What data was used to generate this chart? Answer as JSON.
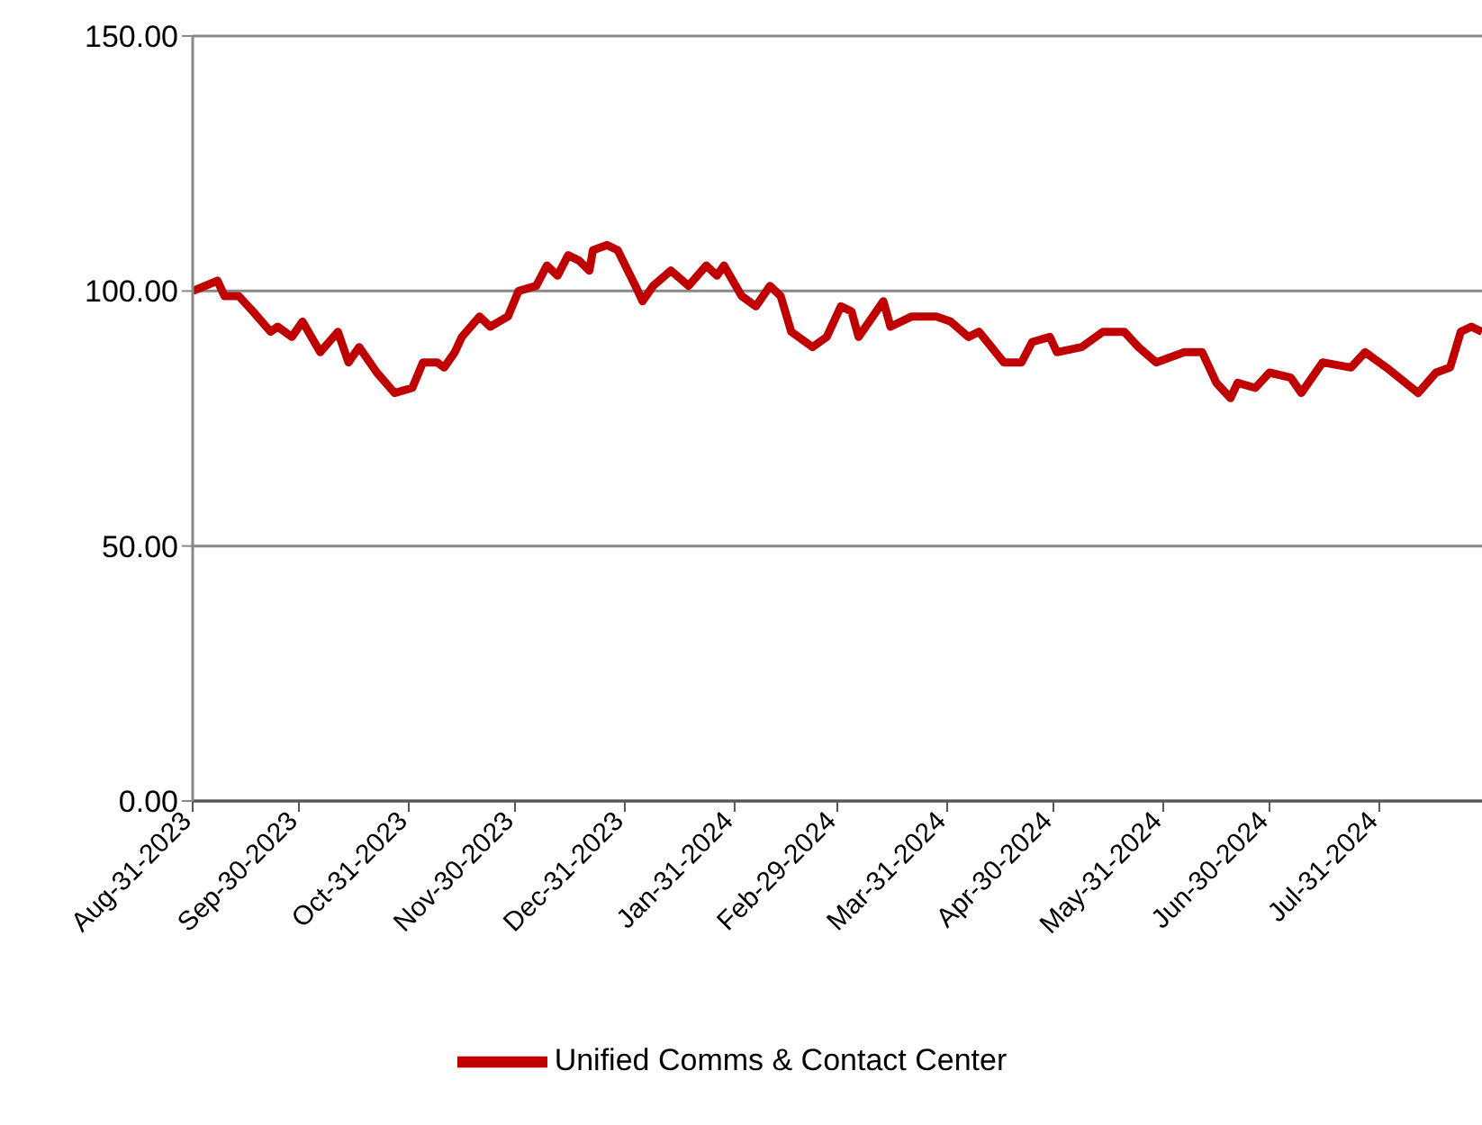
{
  "chart_data": {
    "type": "line",
    "xlim": [
      "2023-08-31",
      "2024-08-29"
    ],
    "xticks": [
      {
        "value": "2023-08-31",
        "label": "Aug-31-2023"
      },
      {
        "value": "2023-09-30",
        "label": "Sep-30-2023"
      },
      {
        "value": "2023-10-31",
        "label": "Oct-31-2023"
      },
      {
        "value": "2023-11-30",
        "label": "Nov-30-2023"
      },
      {
        "value": "2023-12-31",
        "label": "Dec-31-2023"
      },
      {
        "value": "2024-01-31",
        "label": "Jan-31-2024"
      },
      {
        "value": "2024-02-29",
        "label": "Feb-29-2024"
      },
      {
        "value": "2024-03-31",
        "label": "Mar-31-2024"
      },
      {
        "value": "2024-04-30",
        "label": "Apr-30-2024"
      },
      {
        "value": "2024-05-31",
        "label": "May-31-2024"
      },
      {
        "value": "2024-06-30",
        "label": "Jun-30-2024"
      },
      {
        "value": "2024-07-31",
        "label": "Jul-31-2024"
      }
    ],
    "ylim": [
      0,
      150
    ],
    "yticks": [
      {
        "value": 0,
        "label": "0.00"
      },
      {
        "value": 50,
        "label": "50.00"
      },
      {
        "value": 100,
        "label": "100.00"
      },
      {
        "value": 150,
        "label": "150.00"
      }
    ],
    "grid": "y",
    "legend": "bottom",
    "marker": "none",
    "line_style": "solid",
    "x": [
      "2023-08-31",
      "2023-09-07",
      "2023-09-09",
      "2023-09-13",
      "2023-09-17",
      "2023-09-22",
      "2023-09-24",
      "2023-09-28",
      "2023-10-01",
      "2023-10-06",
      "2023-10-11",
      "2023-10-14",
      "2023-10-17",
      "2023-10-22",
      "2023-10-27",
      "2023-11-01",
      "2023-11-04",
      "2023-11-08",
      "2023-11-10",
      "2023-11-13",
      "2023-11-15",
      "2023-11-20",
      "2023-11-23",
      "2023-11-28",
      "2023-12-01",
      "2023-12-06",
      "2023-12-09",
      "2023-12-12",
      "2023-12-15",
      "2023-12-18",
      "2023-12-21",
      "2023-12-22",
      "2023-12-26",
      "2023-12-29",
      "2024-01-03",
      "2024-01-05",
      "2024-01-08",
      "2024-01-13",
      "2024-01-18",
      "2024-01-23",
      "2024-01-26",
      "2024-01-28",
      "2024-02-02",
      "2024-02-06",
      "2024-02-10",
      "2024-02-13",
      "2024-02-16",
      "2024-02-22",
      "2024-02-26",
      "2024-03-01",
      "2024-03-04",
      "2024-03-06",
      "2024-03-13",
      "2024-03-15",
      "2024-03-21",
      "2024-03-28",
      "2024-04-01",
      "2024-04-06",
      "2024-04-09",
      "2024-04-16",
      "2024-04-21",
      "2024-04-24",
      "2024-04-29",
      "2024-05-01",
      "2024-05-08",
      "2024-05-14",
      "2024-05-20",
      "2024-05-24",
      "2024-05-29",
      "2024-06-06",
      "2024-06-11",
      "2024-06-15",
      "2024-06-19",
      "2024-06-21",
      "2024-06-26",
      "2024-06-30",
      "2024-07-06",
      "2024-07-09",
      "2024-07-15",
      "2024-07-23",
      "2024-07-27",
      "2024-08-02",
      "2024-08-11",
      "2024-08-16",
      "2024-08-20",
      "2024-08-23",
      "2024-08-26",
      "2024-08-29"
    ],
    "series": [
      {
        "name": "Unified Comms & Contact Center",
        "color": "#c00000",
        "values": [
          100,
          102,
          99,
          99,
          96,
          92,
          93,
          91,
          94,
          88,
          92,
          86,
          89,
          84,
          80,
          81,
          86,
          86,
          85,
          88,
          91,
          95,
          93,
          95,
          100,
          101,
          105,
          103,
          107,
          106,
          104,
          108,
          109,
          108,
          101,
          98,
          101,
          104,
          101,
          105,
          103,
          105,
          99,
          97,
          101,
          99,
          92,
          89,
          91,
          97,
          96,
          91,
          98,
          93,
          95,
          95,
          94,
          91,
          92,
          86,
          86,
          90,
          91,
          88,
          89,
          92,
          92,
          89,
          86,
          88,
          88,
          82,
          79,
          82,
          81,
          84,
          83,
          80,
          86,
          85,
          88,
          85,
          80,
          84,
          85,
          92,
          93,
          92
        ]
      }
    ]
  }
}
